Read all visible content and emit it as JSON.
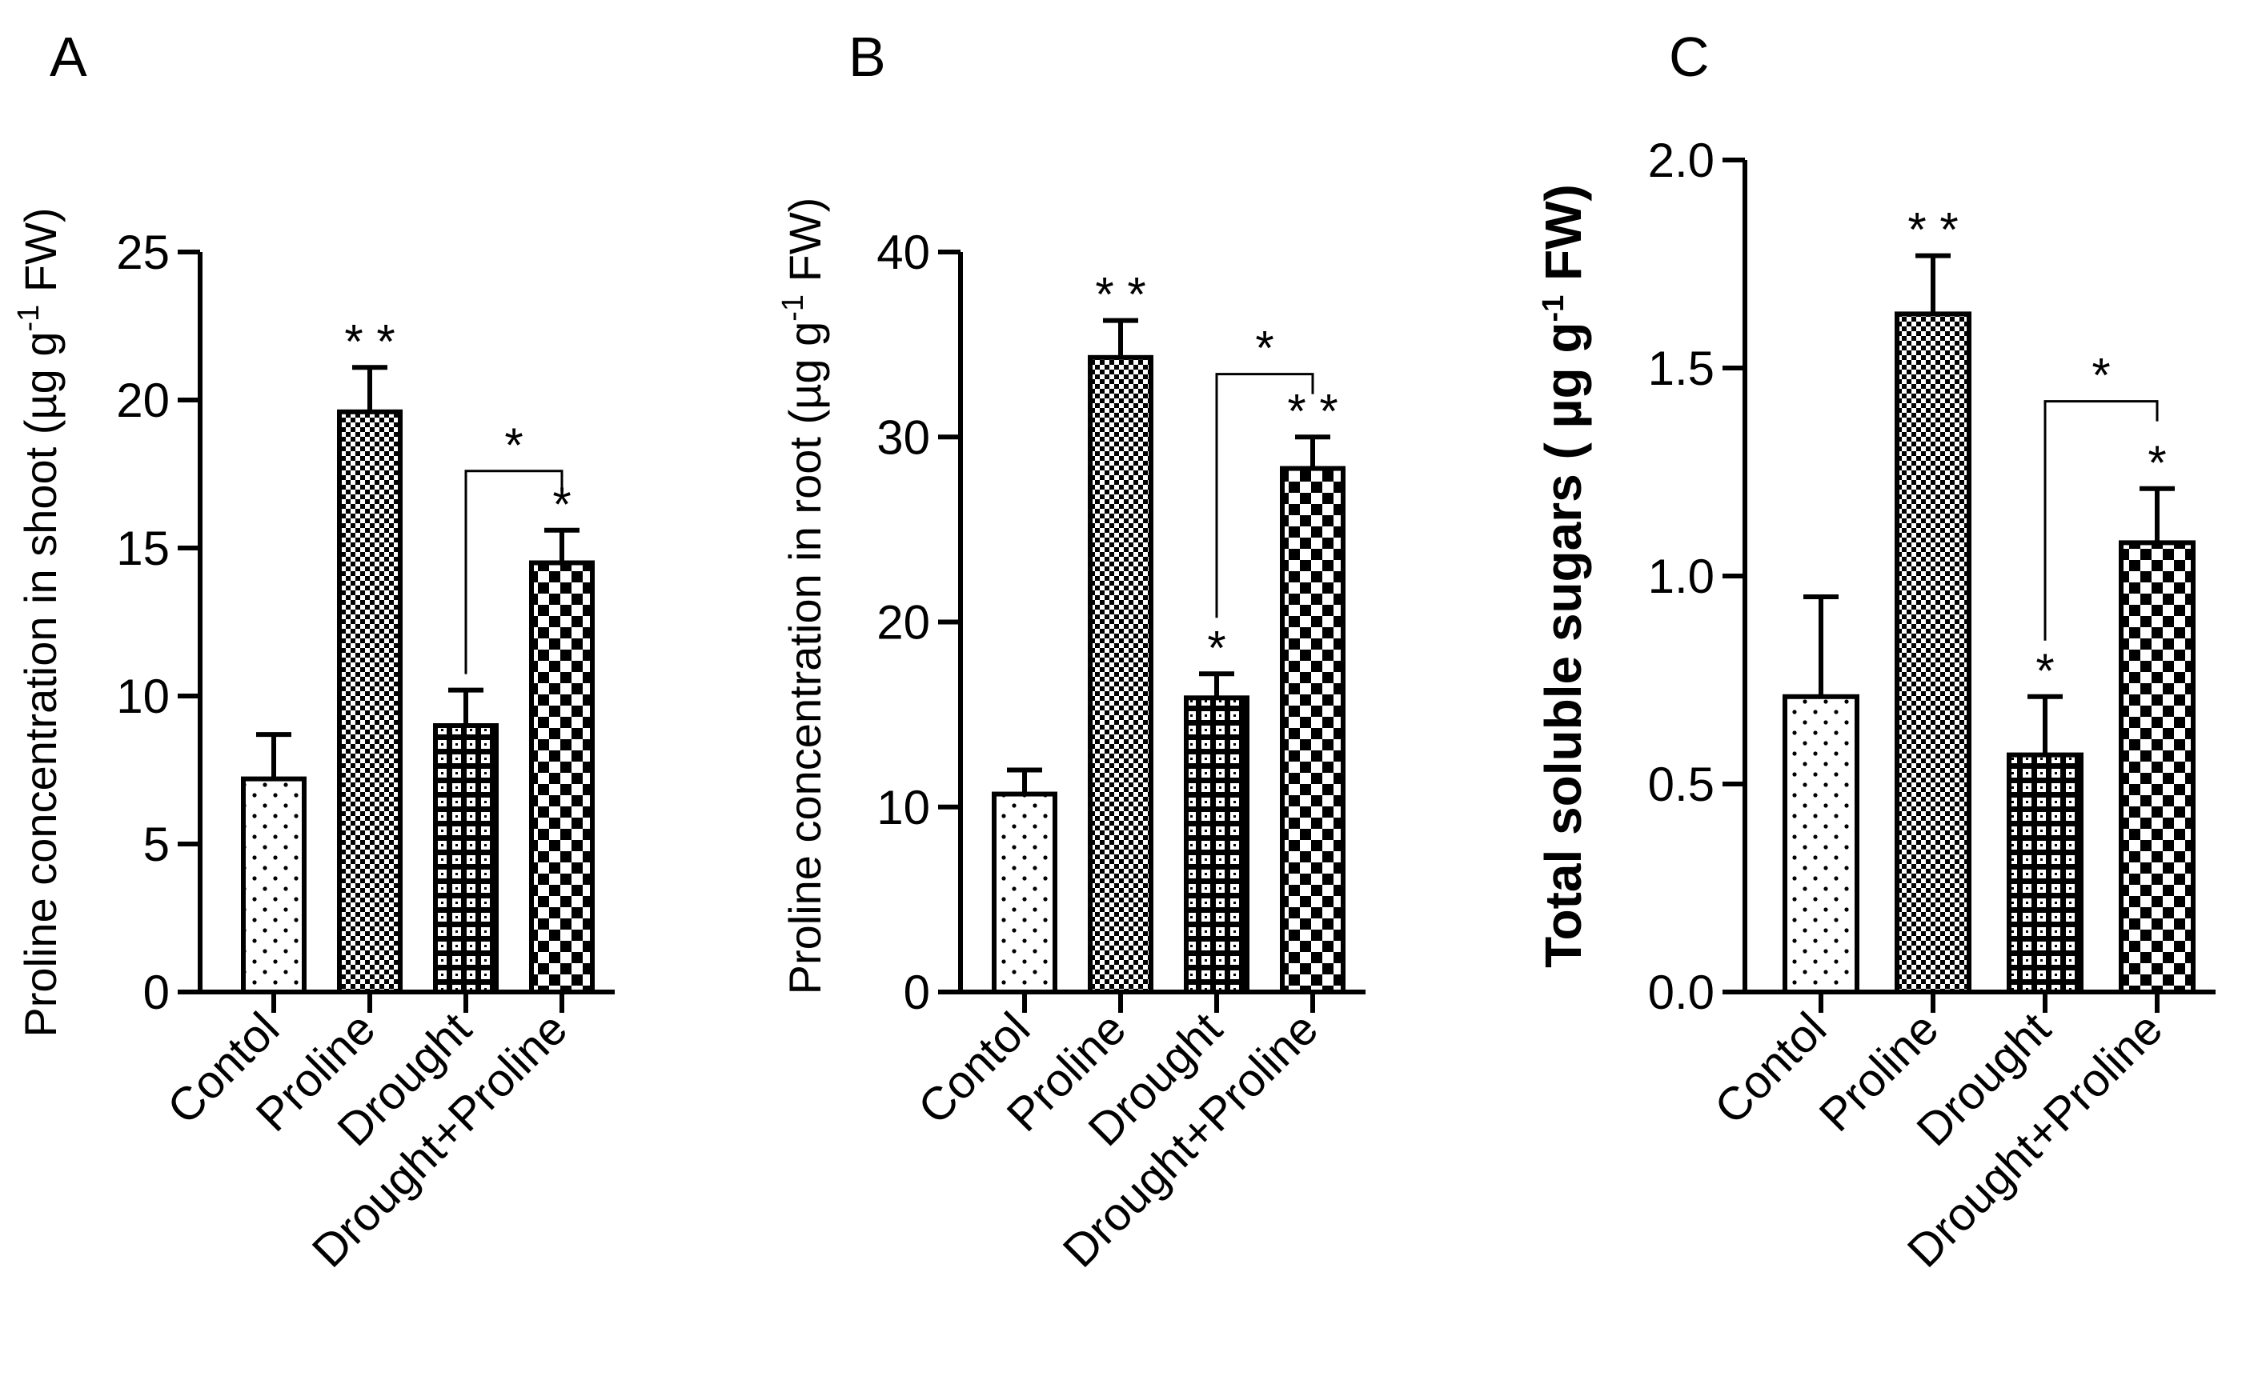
{
  "figure": {
    "panels": [
      "A",
      "B",
      "C"
    ]
  },
  "chart_data": [
    {
      "panel": "A",
      "type": "bar",
      "title": "",
      "ylabel": "Proline concentration in shoot (µg g",
      "ylabel_sup": "-1",
      "ylabel_end": " FW)",
      "ylim": [
        0,
        25
      ],
      "yticks": [
        0,
        5,
        10,
        15,
        20,
        25
      ],
      "ytick_labels": [
        "0",
        "5",
        "10",
        "15",
        "20",
        "25"
      ],
      "categories": [
        "Contol",
        "Proline",
        "Drought",
        "Drought+Proline"
      ],
      "values": [
        7.2,
        19.6,
        9.0,
        14.5
      ],
      "errors": [
        1.5,
        1.5,
        1.2,
        1.1
      ],
      "significance": [
        "",
        "**",
        "",
        "*"
      ],
      "bracket": {
        "from": 2,
        "to": 3,
        "label": "*",
        "y": 17.6
      },
      "bold_label": false
    },
    {
      "panel": "B",
      "type": "bar",
      "title": "",
      "ylabel": "Proline concentration in root (µg g",
      "ylabel_sup": "-1",
      "ylabel_end": " FW)",
      "ylim": [
        0,
        40
      ],
      "yticks": [
        0,
        10,
        20,
        30,
        40
      ],
      "ytick_labels": [
        "0",
        "10",
        "20",
        "30",
        "40"
      ],
      "categories": [
        "Contol",
        "Proline",
        "Drought",
        "Drought+Proline"
      ],
      "values": [
        10.7,
        34.3,
        15.9,
        28.3
      ],
      "errors": [
        1.3,
        2.0,
        1.3,
        1.7
      ],
      "significance": [
        "",
        "**",
        "*",
        "**"
      ],
      "bracket": {
        "from": 2,
        "to": 3,
        "label": "*",
        "y": 33.4
      },
      "bold_label": false
    },
    {
      "panel": "C",
      "type": "bar",
      "title": "",
      "ylabel": "Total soluble sugars ( µg g",
      "ylabel_sup": "-1",
      "ylabel_end": " FW)",
      "ylim": [
        0,
        2.0
      ],
      "yticks": [
        0,
        0.5,
        1.0,
        1.5,
        2.0
      ],
      "ytick_labels": [
        "0.0",
        "0.5",
        "1.0",
        "1.5",
        "2.0"
      ],
      "categories": [
        "Contol",
        "Proline",
        "Drought",
        "Drought+Proline"
      ],
      "values": [
        0.71,
        1.63,
        0.57,
        1.08
      ],
      "errors": [
        0.24,
        0.14,
        0.14,
        0.13
      ],
      "significance": [
        "",
        "**",
        "*",
        "*"
      ],
      "bracket": {
        "from": 2,
        "to": 3,
        "label": "*",
        "y": 1.42
      },
      "bold_label": true
    }
  ]
}
